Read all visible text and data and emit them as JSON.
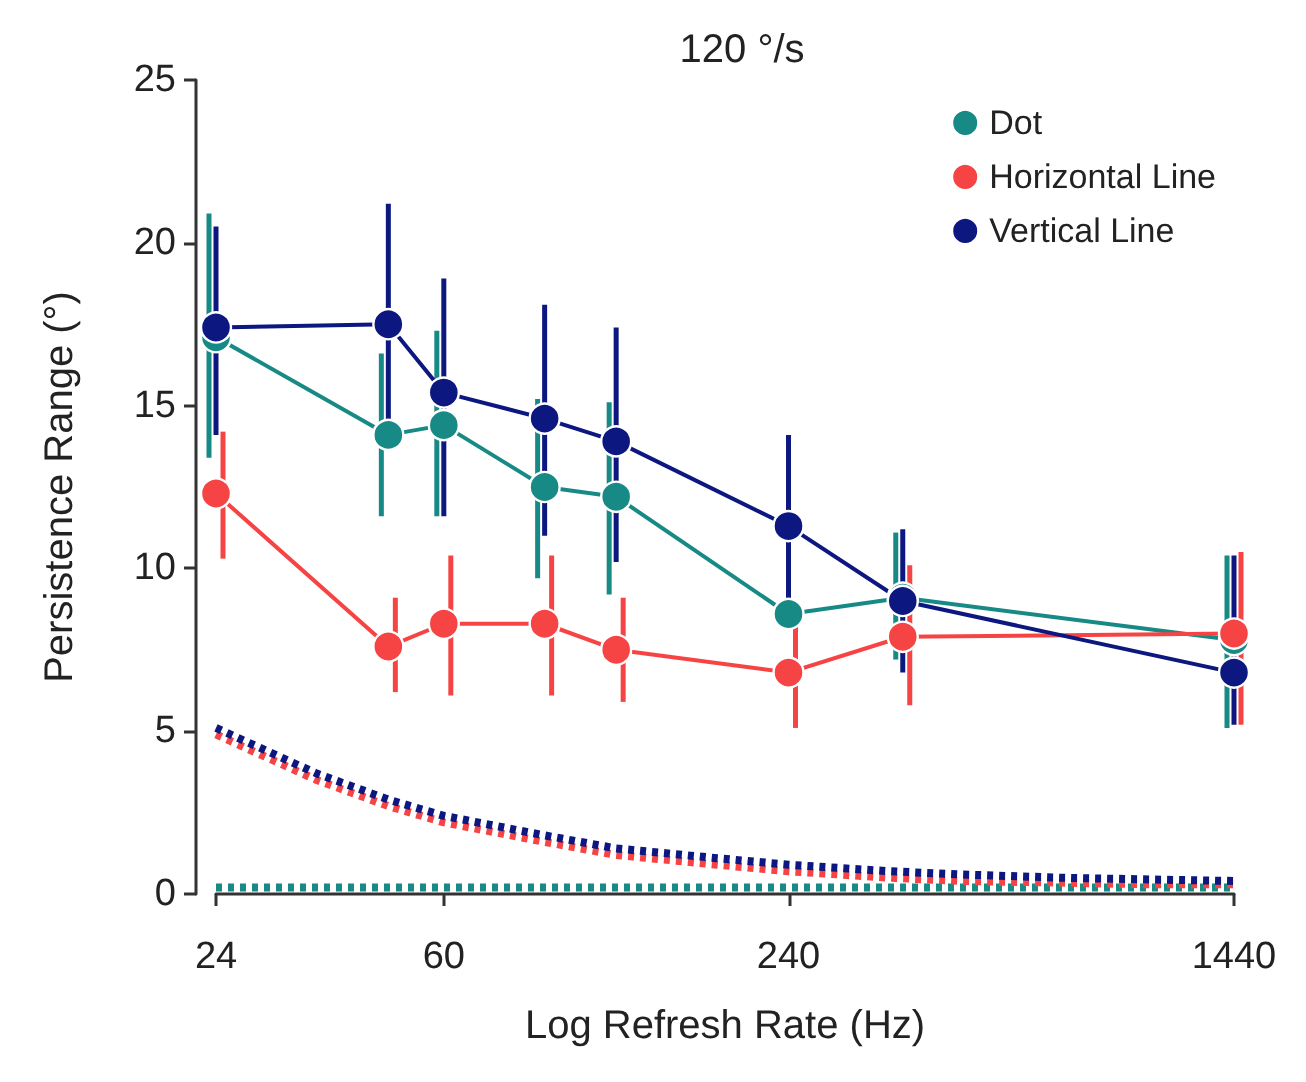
{
  "chart_data": {
    "type": "line",
    "title": "120 °/s",
    "xlabel": "Log Refresh Rate (Hz)",
    "ylabel": "Persistence Range (°)",
    "log": "x",
    "xlim": [
      24,
      1440
    ],
    "xticks": [
      24,
      60,
      240,
      1440
    ],
    "ylim": [
      0,
      25
    ],
    "yticks": [
      0,
      5,
      10,
      15,
      20,
      25
    ],
    "grid": false,
    "legend": "top right",
    "marker": "circle",
    "line_style": "solid",
    "series": [
      {
        "name": "Dot",
        "color": "#178a85",
        "x": [
          24,
          48,
          60,
          90,
          120,
          240,
          380,
          1440
        ],
        "values": [
          17.1,
          14.1,
          14.4,
          12.5,
          12.2,
          8.6,
          9.1,
          7.8
        ],
        "errors": [
          [
            13.4,
            20.9
          ],
          [
            11.6,
            16.6
          ],
          [
            11.6,
            17.3
          ],
          [
            9.7,
            15.2
          ],
          [
            9.2,
            15.1
          ],
          null,
          [
            7.2,
            11.1
          ],
          [
            5.1,
            10.4
          ]
        ]
      },
      {
        "name": "Horizontal Line",
        "color": "#f64444",
        "x": [
          24,
          48,
          60,
          90,
          120,
          240,
          380,
          1440
        ],
        "values": [
          12.3,
          7.6,
          8.3,
          8.3,
          7.5,
          6.8,
          7.9,
          8.0
        ],
        "errors": [
          [
            10.3,
            14.2
          ],
          [
            6.2,
            9.1
          ],
          [
            6.1,
            10.4
          ],
          [
            6.1,
            10.4
          ],
          [
            5.9,
            9.1
          ],
          [
            5.1,
            8.3
          ],
          [
            5.8,
            10.1
          ],
          [
            5.2,
            10.5
          ]
        ]
      },
      {
        "name": "Vertical Line",
        "color": "#0d1780",
        "x": [
          24,
          48,
          60,
          90,
          120,
          240,
          380,
          1440
        ],
        "values": [
          17.4,
          17.5,
          15.4,
          14.6,
          13.9,
          11.3,
          9.0,
          6.8
        ],
        "errors": [
          [
            14.1,
            20.5
          ],
          [
            13.8,
            21.2
          ],
          [
            11.6,
            18.9
          ],
          [
            11.0,
            18.1
          ],
          [
            10.2,
            17.4
          ],
          [
            8.3,
            14.1
          ],
          [
            6.8,
            11.2
          ],
          [
            5.2,
            10.4
          ]
        ]
      },
      {
        "color": "#178a85",
        "marker": "none",
        "line_style": "dotted",
        "x": [
          24,
          1440
        ],
        "values": [
          0.2,
          0.2
        ]
      },
      {
        "color": "#f64444",
        "marker": "none",
        "line_style": "dotted",
        "x": [
          24,
          36,
          48,
          60,
          90,
          120,
          180,
          240,
          360,
          480,
          720,
          1000,
          1440
        ],
        "values": [
          4.9,
          3.5,
          2.7,
          2.2,
          1.6,
          1.2,
          0.9,
          0.7,
          0.5,
          0.4,
          0.35,
          0.3,
          0.3
        ]
      },
      {
        "color": "#0d1780",
        "marker": "none",
        "line_style": "dotted",
        "x": [
          24,
          36,
          48,
          60,
          90,
          120,
          180,
          240,
          360,
          480,
          720,
          1000,
          1440
        ],
        "values": [
          5.1,
          3.7,
          2.9,
          2.4,
          1.8,
          1.4,
          1.1,
          0.9,
          0.7,
          0.6,
          0.5,
          0.45,
          0.4
        ]
      }
    ]
  }
}
